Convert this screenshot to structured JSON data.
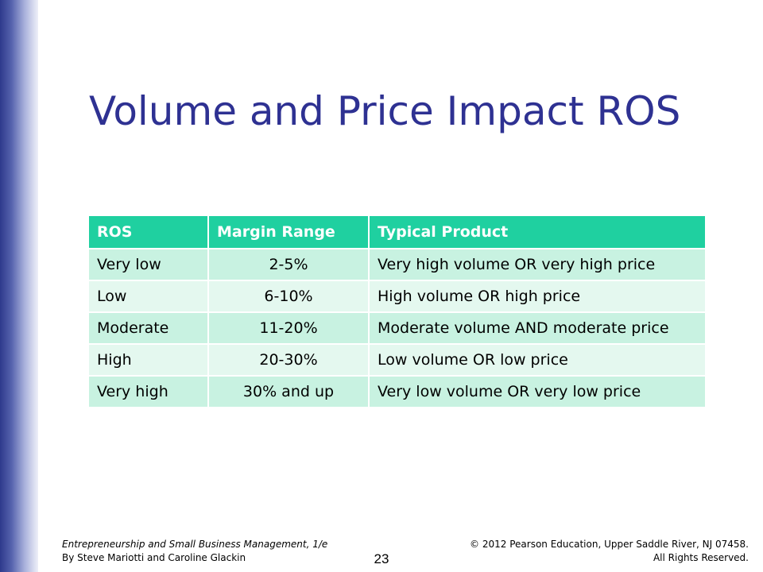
{
  "slide": {
    "title": "Volume and Price Impact ROS",
    "page_number": "23"
  },
  "table": {
    "headers": [
      "ROS",
      "Margin Range",
      "Typical Product"
    ],
    "rows": [
      [
        "Very low",
        "2-5%",
        "Very high volume OR very high price"
      ],
      [
        "Low",
        "6-10%",
        "High volume OR high price"
      ],
      [
        "Moderate",
        "11-20%",
        "Moderate volume AND moderate price"
      ],
      [
        "High",
        "20-30%",
        "Low volume OR low price"
      ],
      [
        "Very high",
        "30% and up",
        "Very low volume OR very low price"
      ]
    ]
  },
  "footer": {
    "left_line1": "Entrepreneurship and Small Business Management, 1/e",
    "left_line2": "By Steve Mariotti and Caroline Glackin",
    "right_line1": "© 2012 Pearson Education, Upper Saddle River, NJ 07458.",
    "right_line2": "All Rights Reserved."
  },
  "colors": {
    "title": "#2e3192",
    "header_bg": "#1fd0a0",
    "row_odd_bg": "#c8f2e1",
    "row_even_bg": "#e4f8ef",
    "side_bar": "#2e3a8c"
  }
}
